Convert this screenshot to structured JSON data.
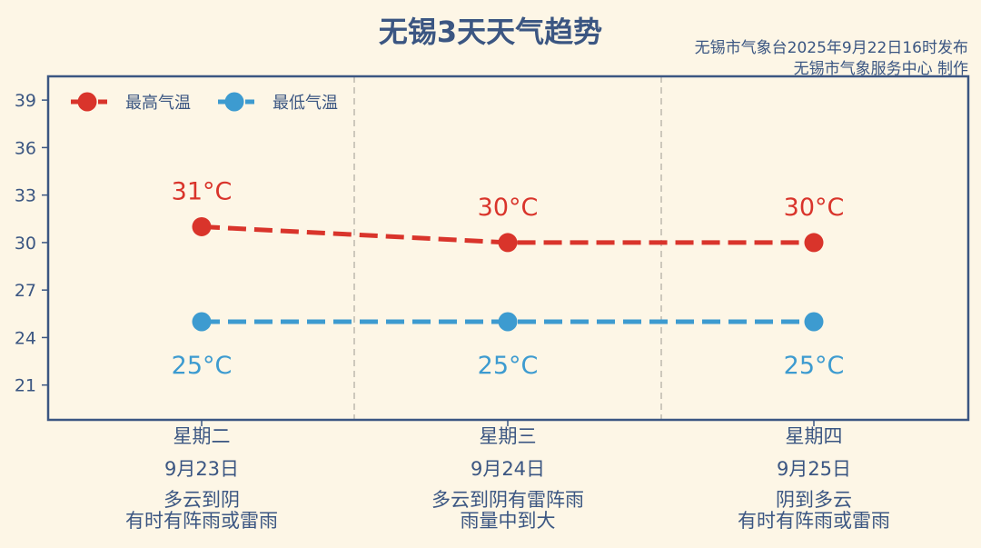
{
  "header": {
    "title": "无锡3天天气趋势",
    "issuer_line_1": "无锡市气象台2025年9月22日16时发布",
    "issuer_line_2": "无锡市气象服务中心 制作"
  },
  "chart_data": {
    "type": "line",
    "title": "无锡3天天气趋势",
    "categories": [
      "星期二",
      "星期三",
      "星期四"
    ],
    "ylim": [
      18.8,
      40.5
    ],
    "yticks": [
      21,
      24,
      27,
      30,
      33,
      36,
      39
    ],
    "legend_position": "top-left",
    "grid": "vertical dashed separators between days",
    "series": [
      {
        "name": "最高气温",
        "color": "#d9342b",
        "values": [
          31,
          30,
          30
        ],
        "labels": [
          "31°C",
          "30°C",
          "30°C"
        ],
        "label_position": "above"
      },
      {
        "name": "最低气温",
        "color": "#3d9bd0",
        "values": [
          25,
          25,
          25
        ],
        "labels": [
          "25°C",
          "25°C",
          "25°C"
        ],
        "label_position": "below"
      }
    ],
    "columns": [
      {
        "day": "星期二",
        "date": "9月23日",
        "weather_1": "多云到阴",
        "weather_2": "有时有阵雨或雷雨"
      },
      {
        "day": "星期三",
        "date": "9月24日",
        "weather_1": "多云到阴有雷阵雨",
        "weather_2": "雨量中到大"
      },
      {
        "day": "星期四",
        "date": "9月25日",
        "weather_1": "阴到多云",
        "weather_2": "有时有阵雨或雷雨"
      }
    ]
  }
}
